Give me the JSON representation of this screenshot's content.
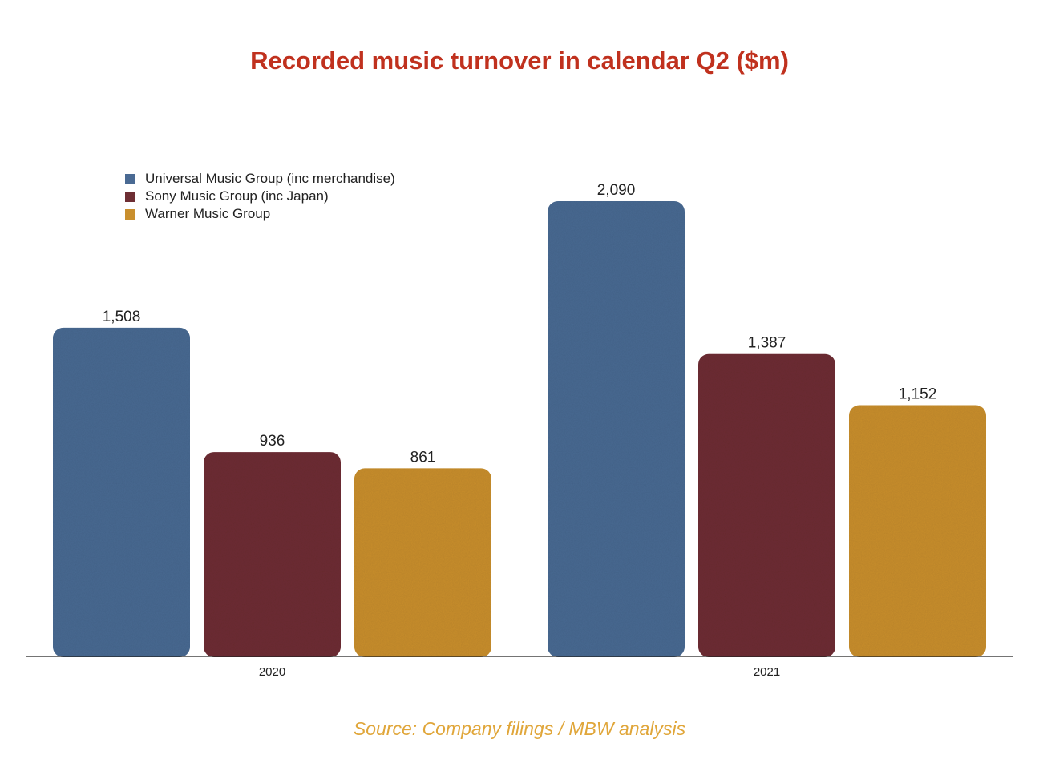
{
  "chart_data": {
    "type": "bar",
    "title": "Recorded music turnover in calendar Q2 ($m)",
    "categories": [
      "2020",
      "2021"
    ],
    "series": [
      {
        "name": "Universal Music Group (inc merchandise)",
        "values": [
          1508,
          2090
        ],
        "labels": [
          "1,508",
          "2,090"
        ],
        "color": "#4a6a93"
      },
      {
        "name": "Sony Music Group (inc Japan)",
        "values": [
          936,
          1387
        ],
        "labels": [
          "936",
          "1,387"
        ],
        "color": "#6e2e34"
      },
      {
        "name": "Warner Music Group",
        "values": [
          861,
          1152
        ],
        "labels": [
          "861",
          "1,152"
        ],
        "color": "#c98f2e"
      }
    ],
    "ylim": [
      0,
      2250
    ],
    "grid": false,
    "legend_position": "top-left",
    "source": "Source: Company filings / MBW analysis"
  },
  "colors": {
    "title": "#c0311e",
    "source": "#e0a63a",
    "axis": "#222222"
  }
}
